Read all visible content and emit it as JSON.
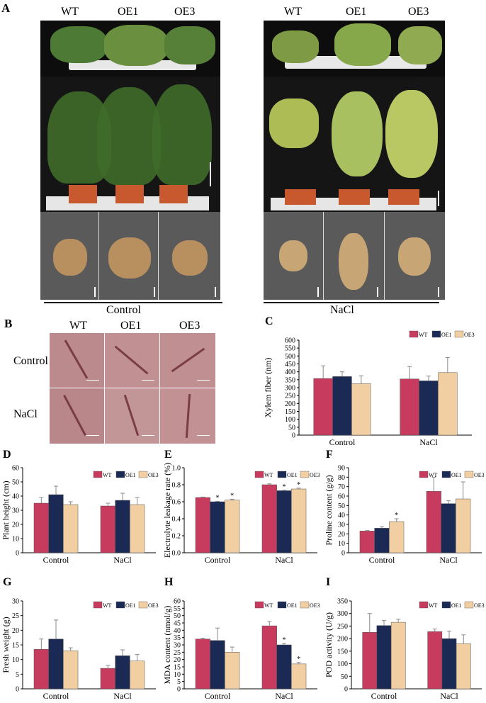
{
  "panels": {
    "A": {
      "letter": "A",
      "left_labels": [
        "WT",
        "OE1",
        "OE3"
      ],
      "right_labels": [
        "WT",
        "OE1",
        "OE3"
      ],
      "left_condition": "Control",
      "right_condition": "NaCl"
    },
    "B": {
      "letter": "B",
      "col_labels": [
        "WT",
        "OE1",
        "OE3"
      ],
      "row_labels": [
        "Control",
        "NaCl"
      ]
    }
  },
  "colors": {
    "WT": "#c73b5e",
    "OE1": "#1b2a55",
    "OE3": "#f2cfa2",
    "photo_bg": "#141414",
    "micro_bg": "#b9888c"
  },
  "chart_data": [
    {
      "id": "C",
      "letter": "C",
      "type": "bar",
      "categories": [
        "Control",
        "NaCl"
      ],
      "legend": [
        "WT",
        "OE1",
        "OE3"
      ],
      "legend_position": "top-right",
      "ylabel": "Xylem fiber (nm)",
      "xlabel": "",
      "ylim": [
        0,
        600
      ],
      "yticks": [
        0,
        50,
        100,
        150,
        200,
        250,
        300,
        350,
        400,
        450,
        500,
        550,
        600
      ],
      "series": [
        {
          "name": "WT",
          "values": [
            358,
            355
          ],
          "errors": [
            80,
            78
          ],
          "sig": [
            "",
            ""
          ]
        },
        {
          "name": "OE1",
          "values": [
            370,
            343
          ],
          "errors": [
            30,
            30
          ],
          "sig": [
            "",
            ""
          ]
        },
        {
          "name": "OE3",
          "values": [
            325,
            395
          ],
          "errors": [
            50,
            95
          ],
          "sig": [
            "",
            ""
          ]
        }
      ]
    },
    {
      "id": "D",
      "letter": "D",
      "type": "bar",
      "categories": [
        "Control",
        "NaCl"
      ],
      "legend": [
        "WT",
        "OE1",
        "OE3"
      ],
      "legend_position": "top-right",
      "ylabel": "Plant height (cm)",
      "xlabel": "",
      "ylim": [
        0,
        60
      ],
      "yticks": [
        0,
        10,
        20,
        30,
        40,
        50,
        60
      ],
      "series": [
        {
          "name": "WT",
          "values": [
            35,
            33
          ],
          "errors": [
            4,
            2
          ],
          "sig": [
            "",
            ""
          ]
        },
        {
          "name": "OE1",
          "values": [
            41,
            37
          ],
          "errors": [
            6,
            5
          ],
          "sig": [
            "",
            ""
          ]
        },
        {
          "name": "OE3",
          "values": [
            34,
            34
          ],
          "errors": [
            2,
            5
          ],
          "sig": [
            "",
            ""
          ]
        }
      ]
    },
    {
      "id": "E",
      "letter": "E",
      "type": "bar",
      "categories": [
        "Control",
        "NaCl"
      ],
      "legend": [
        "WT",
        "OE1",
        "OE3"
      ],
      "legend_position": "top-right",
      "ylabel": "Electrolyte leakage rate (%)",
      "xlabel": "",
      "ylim": [
        0,
        1.0
      ],
      "yticks": [
        "0.0",
        "0.2",
        "0.4",
        "0.6",
        "0.8",
        "1.0"
      ],
      "series": [
        {
          "name": "WT",
          "values": [
            0.65,
            0.8
          ],
          "errors": [
            0.005,
            0.01
          ],
          "sig": [
            "",
            ""
          ]
        },
        {
          "name": "OE1",
          "values": [
            0.6,
            0.73
          ],
          "errors": [
            0.005,
            0.005
          ],
          "sig": [
            "*",
            "*"
          ]
        },
        {
          "name": "OE3",
          "values": [
            0.62,
            0.75
          ],
          "errors": [
            0.01,
            0.01
          ],
          "sig": [
            "*",
            "*"
          ]
        }
      ]
    },
    {
      "id": "F",
      "letter": "F",
      "type": "bar",
      "categories": [
        "Control",
        "NaCl"
      ],
      "legend": [
        "WT",
        "OE1",
        "OE3"
      ],
      "legend_position": "top-right",
      "ylabel": "Proline content (g/g)",
      "xlabel": "",
      "ylim": [
        0,
        90
      ],
      "yticks": [
        0,
        10,
        20,
        30,
        40,
        50,
        60,
        70,
        80,
        90
      ],
      "series": [
        {
          "name": "WT",
          "values": [
            23,
            65
          ],
          "errors": [
            0.5,
            15
          ],
          "sig": [
            "",
            ""
          ]
        },
        {
          "name": "OE1",
          "values": [
            26,
            52
          ],
          "errors": [
            1.5,
            3
          ],
          "sig": [
            "",
            ""
          ]
        },
        {
          "name": "OE3",
          "values": [
            33,
            57
          ],
          "errors": [
            3,
            18
          ],
          "sig": [
            "*",
            ""
          ]
        }
      ]
    },
    {
      "id": "G",
      "letter": "G",
      "type": "bar",
      "categories": [
        "Control",
        "NaCl"
      ],
      "legend": [
        "WT",
        "OE1",
        "OE3"
      ],
      "legend_position": "top-right",
      "ylabel": "Fresh weight (g)",
      "xlabel": "",
      "ylim": [
        0,
        30
      ],
      "yticks": [
        0,
        5,
        10,
        15,
        20,
        25,
        30
      ],
      "series": [
        {
          "name": "WT",
          "values": [
            13.5,
            7
          ],
          "errors": [
            3.5,
            1
          ],
          "sig": [
            "",
            ""
          ]
        },
        {
          "name": "OE1",
          "values": [
            17,
            11.3
          ],
          "errors": [
            6.5,
            2
          ],
          "sig": [
            "",
            ""
          ]
        },
        {
          "name": "OE3",
          "values": [
            13,
            9.5
          ],
          "errors": [
            1,
            2.2
          ],
          "sig": [
            "",
            ""
          ]
        }
      ]
    },
    {
      "id": "H",
      "letter": "H",
      "type": "bar",
      "categories": [
        "Control",
        "NaCl"
      ],
      "legend": [
        "WT",
        "OE1",
        "OE3"
      ],
      "legend_position": "top-right",
      "ylabel": "MDA content (nmol/g)",
      "xlabel": "",
      "ylim": [
        0,
        60
      ],
      "yticks": [
        0,
        5,
        10,
        15,
        20,
        25,
        30,
        35,
        40,
        45,
        50,
        55,
        60
      ],
      "series": [
        {
          "name": "WT",
          "values": [
            34,
            43
          ],
          "errors": [
            0.5,
            3
          ],
          "sig": [
            "",
            ""
          ]
        },
        {
          "name": "OE1",
          "values": [
            33,
            30
          ],
          "errors": [
            8.5,
            1
          ],
          "sig": [
            "",
            "*"
          ]
        },
        {
          "name": "OE3",
          "values": [
            25,
            17
          ],
          "errors": [
            3.5,
            1
          ],
          "sig": [
            "",
            "*"
          ]
        }
      ]
    },
    {
      "id": "I",
      "letter": "I",
      "type": "bar",
      "categories": [
        "Control",
        "NaCl"
      ],
      "legend": [
        "WT",
        "OE1",
        "OE3"
      ],
      "legend_position": "top-right",
      "ylabel": "POD activity (U/g)",
      "xlabel": "",
      "ylim": [
        0,
        350
      ],
      "yticks": [
        0,
        50,
        100,
        150,
        200,
        250,
        300,
        350
      ],
      "series": [
        {
          "name": "WT",
          "values": [
            225,
            228
          ],
          "errors": [
            75,
            10
          ],
          "sig": [
            "",
            ""
          ]
        },
        {
          "name": "OE1",
          "values": [
            252,
            200
          ],
          "errors": [
            20,
            30
          ],
          "sig": [
            "",
            ""
          ]
        },
        {
          "name": "OE3",
          "values": [
            265,
            180
          ],
          "errors": [
            12,
            35
          ],
          "sig": [
            "",
            ""
          ]
        }
      ]
    }
  ]
}
